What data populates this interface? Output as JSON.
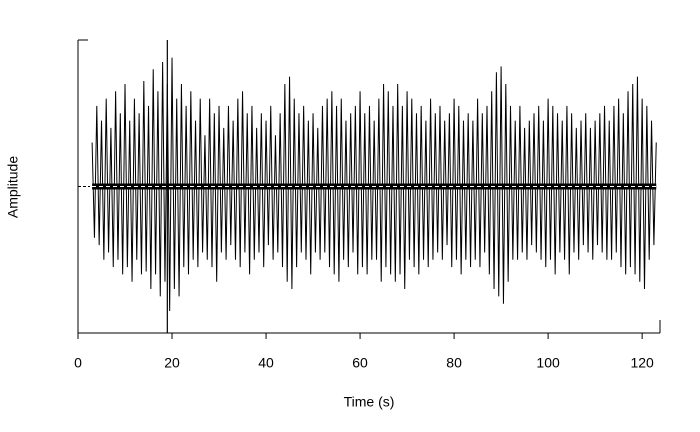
{
  "chart_data": {
    "type": "line",
    "x_label": "Time (s)",
    "y_label": "Amplitude",
    "color": "#000000",
    "x": [
      3,
      3.5,
      4,
      4.5,
      5,
      5.5,
      6,
      6.5,
      7,
      7.5,
      8,
      8.5,
      9,
      9.5,
      10,
      10.5,
      11,
      11.5,
      12,
      12.5,
      13,
      13.5,
      14,
      14.5,
      15,
      15.5,
      16,
      16.5,
      17,
      17.5,
      18,
      18.5,
      19,
      19.5,
      20,
      20.5,
      21,
      21.5,
      22,
      22.5,
      23,
      23.5,
      24,
      24.5,
      25,
      25.5,
      26,
      26.5,
      27,
      27.5,
      28,
      28.5,
      29,
      29.5,
      30,
      30.5,
      31,
      31.5,
      32,
      32.5,
      33,
      33.5,
      34,
      34.5,
      35,
      35.5,
      36,
      36.5,
      37,
      37.5,
      38,
      38.5,
      39,
      39.5,
      40,
      40.5,
      41,
      41.5,
      42,
      42.5,
      43,
      43.5,
      44,
      44.5,
      45,
      45.5,
      46,
      46.5,
      47,
      47.5,
      48,
      48.5,
      49,
      49.5,
      50,
      50.5,
      51,
      51.5,
      52,
      52.5,
      53,
      53.5,
      54,
      54.5,
      55,
      55.5,
      56,
      56.5,
      57,
      57.5,
      58,
      58.5,
      59,
      59.5,
      60,
      60.5,
      61,
      61.5,
      62,
      62.5,
      63,
      63.5,
      64,
      64.5,
      65,
      65.5,
      66,
      66.5,
      67,
      67.5,
      68,
      68.5,
      69,
      69.5,
      70,
      70.5,
      71,
      71.5,
      72,
      72.5,
      73,
      73.5,
      74,
      74.5,
      75,
      75.5,
      76,
      76.5,
      77,
      77.5,
      78,
      78.5,
      79,
      79.5,
      80,
      80.5,
      81,
      81.5,
      82,
      82.5,
      83,
      83.5,
      84,
      84.5,
      85,
      85.5,
      86,
      86.5,
      87,
      87.5,
      88,
      88.5,
      89,
      89.5,
      90,
      90.5,
      91,
      91.5,
      92,
      92.5,
      93,
      93.5,
      94,
      94.5,
      95,
      95.5,
      96,
      96.5,
      97,
      97.5,
      98,
      98.5,
      99,
      99.5,
      100,
      100.5,
      101,
      101.5,
      102,
      102.5,
      103,
      103.5,
      104,
      104.5,
      105,
      105.5,
      106,
      106.5,
      107,
      107.5,
      108,
      108.5,
      109,
      109.5,
      110,
      110.5,
      111,
      111.5,
      112,
      112.5,
      113,
      113.5,
      114,
      114.5,
      115,
      115.5,
      116,
      116.5,
      117,
      117.5,
      118,
      118.5,
      119,
      119.5,
      120,
      120.5,
      121,
      121.5,
      122,
      122.5,
      123
    ],
    "values": [
      0.3,
      -0.35,
      0.55,
      -0.4,
      0.45,
      -0.5,
      0.6,
      -0.45,
      0.4,
      -0.55,
      0.65,
      -0.5,
      0.5,
      -0.6,
      0.7,
      -0.55,
      0.45,
      -0.65,
      0.6,
      -0.5,
      0.5,
      -0.6,
      0.72,
      -0.58,
      0.55,
      -0.7,
      0.8,
      -0.6,
      0.65,
      -0.75,
      0.85,
      -0.65,
      0.7,
      -0.85,
      0.88,
      -0.7,
      0.6,
      -0.75,
      0.7,
      -0.55,
      0.55,
      -0.6,
      0.65,
      -0.5,
      0.45,
      -0.55,
      0.6,
      -0.45,
      0.35,
      -0.5,
      0.6,
      -0.55,
      0.5,
      -0.65,
      0.55,
      -0.45,
      0.4,
      -0.5,
      0.55,
      -0.4,
      0.45,
      -0.5,
      0.6,
      -0.55,
      0.65,
      -0.45,
      0.5,
      -0.6,
      0.55,
      -0.5,
      0.4,
      -0.45,
      0.5,
      -0.55,
      0.45,
      -0.4,
      0.55,
      -0.5,
      0.35,
      -0.45,
      0.5,
      -0.55,
      0.7,
      -0.65,
      0.75,
      -0.7,
      0.6,
      -0.55,
      0.5,
      -0.45,
      0.55,
      -0.5,
      0.45,
      -0.6,
      0.5,
      -0.45,
      0.4,
      -0.5,
      0.55,
      -0.45,
      0.6,
      -0.55,
      0.65,
      -0.6,
      0.55,
      -0.65,
      0.6,
      -0.5,
      0.45,
      -0.55,
      0.5,
      -0.45,
      0.55,
      -0.6,
      0.65,
      -0.55,
      0.5,
      -0.6,
      0.55,
      -0.5,
      0.45,
      -0.5,
      0.6,
      -0.65,
      0.7,
      -0.55,
      0.65,
      -0.6,
      0.55,
      -0.65,
      0.7,
      -0.6,
      0.55,
      -0.7,
      0.65,
      -0.5,
      0.6,
      -0.55,
      0.5,
      -0.6,
      0.55,
      -0.5,
      0.45,
      -0.55,
      0.6,
      -0.5,
      0.5,
      -0.45,
      0.55,
      -0.5,
      0.45,
      -0.4,
      0.5,
      -0.55,
      0.6,
      -0.5,
      0.55,
      -0.6,
      0.45,
      -0.5,
      0.5,
      -0.55,
      0.45,
      -0.5,
      0.6,
      -0.55,
      0.5,
      -0.45,
      0.55,
      -0.6,
      0.65,
      -0.7,
      0.78,
      -0.75,
      0.82,
      -0.8,
      0.7,
      -0.65,
      0.55,
      -0.5,
      0.45,
      -0.5,
      0.55,
      -0.45,
      0.4,
      -0.5,
      0.45,
      -0.4,
      0.5,
      -0.45,
      0.55,
      -0.5,
      0.45,
      -0.55,
      0.6,
      -0.5,
      0.55,
      -0.6,
      0.5,
      -0.45,
      0.45,
      -0.5,
      0.55,
      -0.6,
      0.5,
      -0.45,
      0.4,
      -0.5,
      0.45,
      -0.4,
      0.5,
      -0.45,
      0.4,
      -0.5,
      0.45,
      -0.4,
      0.5,
      -0.45,
      0.55,
      -0.5,
      0.45,
      -0.5,
      0.55,
      -0.45,
      0.6,
      -0.55,
      0.5,
      -0.6,
      0.65,
      -0.55,
      0.7,
      -0.6,
      0.75,
      -0.65,
      0.6,
      -0.7,
      0.55,
      -0.5,
      0.45,
      -0.4,
      0.3
    ],
    "xlim": [
      0,
      123.8
    ],
    "xticks": [
      0,
      20,
      40,
      60,
      80,
      100,
      120
    ],
    "ylim": [
      -1,
      1
    ],
    "vline": 19,
    "hline": 0
  }
}
